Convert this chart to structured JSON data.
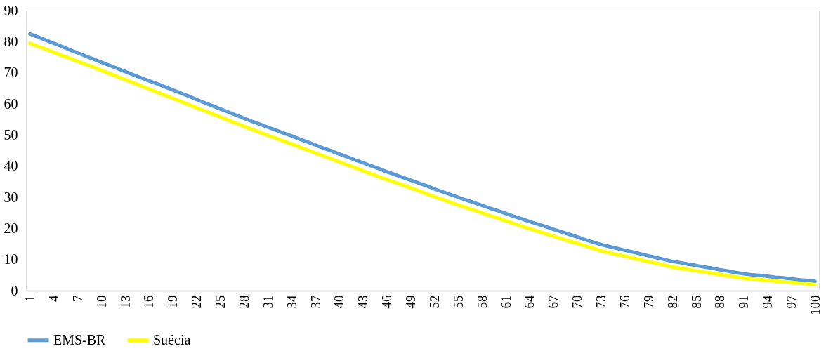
{
  "chart_data": {
    "type": "line",
    "categories": [
      "1",
      null,
      null,
      "4",
      null,
      null,
      "7",
      null,
      null,
      "10",
      null,
      null,
      "13",
      null,
      null,
      "16",
      null,
      null,
      "19",
      null,
      null,
      "22",
      null,
      null,
      "25",
      null,
      null,
      "28",
      null,
      null,
      "31",
      null,
      null,
      "34",
      null,
      null,
      "37",
      null,
      null,
      "40",
      null,
      null,
      "43",
      null,
      null,
      "46",
      null,
      null,
      "49",
      null,
      null,
      "52",
      null,
      null,
      "55",
      null,
      null,
      "58",
      null,
      null,
      "61",
      null,
      null,
      "64",
      null,
      null,
      "67",
      null,
      null,
      "70",
      null,
      null,
      "73",
      null,
      null,
      "76",
      null,
      null,
      "79",
      null,
      null,
      "82",
      null,
      null,
      "85",
      null,
      null,
      "88",
      null,
      null,
      "91",
      null,
      null,
      "94",
      null,
      null,
      "97",
      null,
      null,
      "100"
    ],
    "series": [
      {
        "name": "EMS-BR",
        "color": "#5b9bd5",
        "values": [
          82.5,
          81.5,
          80.5,
          79.5,
          78.5,
          77.4,
          76.4,
          75.4,
          74.4,
          73.4,
          72.4,
          71.4,
          70.4,
          69.4,
          68.4,
          67.4,
          66.5,
          65.5,
          64.5,
          63.5,
          62.5,
          61.4,
          60.4,
          59.4,
          58.4,
          57.4,
          56.4,
          55.4,
          54.4,
          53.5,
          52.5,
          51.6,
          50.6,
          49.7,
          48.7,
          47.8,
          46.8,
          45.8,
          44.9,
          43.9,
          43.0,
          42.0,
          41.1,
          40.1,
          39.2,
          38.2,
          37.3,
          36.4,
          35.5,
          34.6,
          33.7,
          32.7,
          31.8,
          30.9,
          30.0,
          29.1,
          28.3,
          27.4,
          26.5,
          25.7,
          24.8,
          23.9,
          23.1,
          22.2,
          21.4,
          20.6,
          19.7,
          18.9,
          18.1,
          17.3,
          16.4,
          15.6,
          14.8,
          14.2,
          13.6,
          13.0,
          12.4,
          11.8,
          11.2,
          10.6,
          10.0,
          9.4,
          9.0,
          8.5,
          8.1,
          7.6,
          7.2,
          6.7,
          6.3,
          5.8,
          5.4,
          5.1,
          4.9,
          4.6,
          4.3,
          4.1,
          3.8,
          3.5,
          3.3,
          3.0
        ]
      },
      {
        "name": "Suécia",
        "color": "#ffff00",
        "values": [
          79.5,
          78.5,
          77.6,
          76.6,
          75.6,
          74.7,
          73.7,
          72.7,
          71.8,
          70.8,
          69.8,
          68.8,
          67.8,
          66.8,
          65.8,
          64.8,
          63.8,
          62.8,
          61.8,
          60.8,
          59.8,
          58.8,
          57.8,
          56.8,
          55.8,
          54.8,
          53.8,
          52.8,
          51.8,
          50.9,
          49.9,
          49.0,
          48.0,
          47.1,
          46.1,
          45.2,
          44.2,
          43.3,
          42.3,
          41.4,
          40.4,
          39.5,
          38.5,
          37.6,
          36.6,
          35.7,
          34.8,
          33.9,
          33.0,
          32.1,
          31.1,
          30.2,
          29.3,
          28.4,
          27.5,
          26.7,
          25.8,
          25.0,
          24.1,
          23.3,
          22.4,
          21.6,
          20.7,
          19.9,
          19.1,
          18.3,
          17.5,
          16.7,
          15.9,
          15.2,
          14.4,
          13.6,
          12.8,
          12.2,
          11.6,
          11.1,
          10.5,
          9.9,
          9.3,
          8.8,
          8.2,
          7.6,
          7.2,
          6.8,
          6.4,
          6.0,
          5.6,
          5.2,
          4.8,
          4.4,
          4.0,
          3.8,
          3.6,
          3.3,
          3.1,
          2.9,
          2.7,
          2.4,
          2.2,
          2.0
        ]
      }
    ],
    "ylim": [
      0,
      90
    ],
    "yticks": [
      0,
      10,
      20,
      30,
      40,
      50,
      60,
      70,
      80,
      90
    ],
    "grid": false,
    "legend": "bottom",
    "line_style": "solid"
  }
}
